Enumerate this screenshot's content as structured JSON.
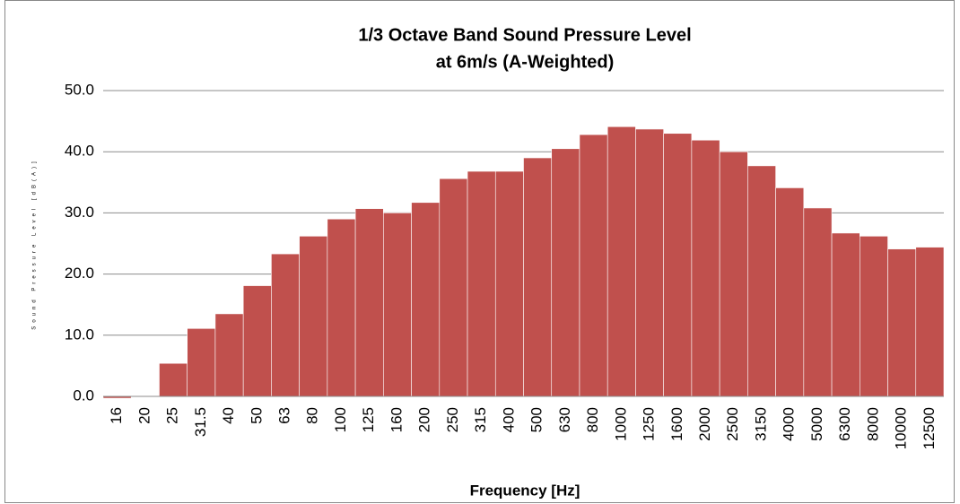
{
  "chart_data": {
    "type": "bar",
    "title": [
      "1/3 Octave Band Sound Pressure Level",
      "at 6m/s (A-Weighted)"
    ],
    "x_label": "Frequency [Hz]",
    "y_label": "Sound Pressure Level [dB(A)]",
    "categories": [
      "16",
      "20",
      "25",
      "31.5",
      "40",
      "50",
      "63",
      "80",
      "100",
      "125",
      "160",
      "200",
      "250",
      "315",
      "400",
      "500",
      "630",
      "800",
      "1000",
      "1250",
      "1600",
      "2000",
      "2500",
      "3150",
      "4000",
      "5000",
      "6300",
      "8000",
      "10000",
      "12500"
    ],
    "values": [
      -0.3,
      0.1,
      5.4,
      11.1,
      13.5,
      18.1,
      23.3,
      26.2,
      29.0,
      30.7,
      30.0,
      31.7,
      35.6,
      36.8,
      36.8,
      39.0,
      40.5,
      42.8,
      44.1,
      43.7,
      43.0,
      41.9,
      40.0,
      37.7,
      34.1,
      30.8,
      26.7,
      26.2,
      24.1,
      24.4
    ],
    "color": "#c0504d",
    "ylim": [
      0,
      50
    ],
    "yticks": [
      {
        "value": 0,
        "label": "0.0"
      },
      {
        "value": 10,
        "label": "10.0"
      },
      {
        "value": 20,
        "label": "20.0"
      },
      {
        "value": 30,
        "label": "30.0"
      },
      {
        "value": 40,
        "label": "40.0"
      },
      {
        "value": 50,
        "label": "50.0"
      }
    ],
    "grid": true
  }
}
